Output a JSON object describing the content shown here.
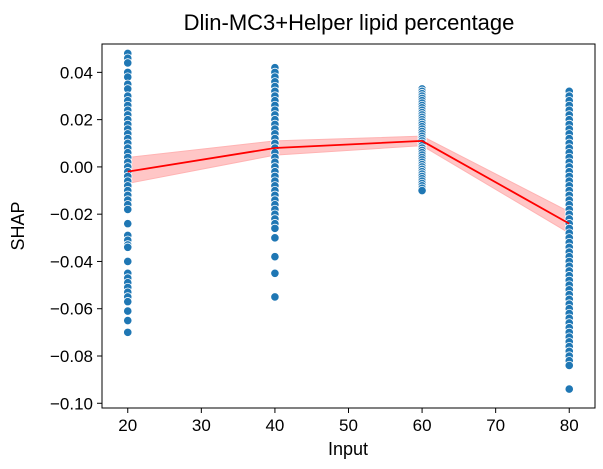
{
  "chart_data": {
    "type": "scatter",
    "title": "Dlin-MC3+Helper lipid percentage",
    "xlabel": "Input",
    "ylabel": "SHAP",
    "xlim": [
      16.5,
      83.5
    ],
    "ylim": [
      -0.102,
      0.052
    ],
    "x_ticks": [
      20,
      30,
      40,
      50,
      60,
      70,
      80
    ],
    "y_ticks": [
      -0.1,
      -0.08,
      -0.06,
      -0.04,
      -0.02,
      0.0,
      0.02,
      0.04
    ],
    "x_tick_labels": [
      "20",
      "30",
      "40",
      "50",
      "60",
      "70",
      "80"
    ],
    "y_tick_labels": [
      "−0.10",
      "−0.08",
      "−0.06",
      "−0.04",
      "−0.02",
      "0.00",
      "0.02",
      "0.04"
    ],
    "grid": false,
    "scatter_series": {
      "color": "#1f77b4",
      "points": [
        {
          "x": 20,
          "y": [
            0.048,
            0.046,
            0.044,
            0.04,
            0.038,
            0.035,
            0.033,
            0.03,
            0.028,
            0.026,
            0.024,
            0.022,
            0.02,
            0.018,
            0.016,
            0.014,
            0.012,
            0.01,
            0.008,
            0.006,
            0.004,
            0.002,
            0.0,
            -0.002,
            -0.004,
            -0.006,
            -0.008,
            -0.01,
            -0.012,
            -0.014,
            -0.016,
            -0.018,
            -0.024,
            -0.029,
            -0.031,
            -0.033,
            -0.034,
            -0.04,
            -0.045,
            -0.047,
            -0.049,
            -0.051,
            -0.053,
            -0.055,
            -0.057,
            -0.061,
            -0.065,
            -0.07
          ]
        },
        {
          "x": 40,
          "y": [
            0.042,
            0.04,
            0.038,
            0.036,
            0.034,
            0.032,
            0.03,
            0.028,
            0.026,
            0.024,
            0.022,
            0.02,
            0.018,
            0.016,
            0.014,
            0.012,
            0.01,
            0.008,
            0.006,
            0.004,
            0.002,
            0.0,
            -0.002,
            -0.004,
            -0.006,
            -0.008,
            -0.01,
            -0.012,
            -0.014,
            -0.016,
            -0.018,
            -0.02,
            -0.022,
            -0.024,
            -0.026,
            -0.03,
            -0.038,
            -0.045,
            -0.055
          ]
        },
        {
          "x": 60,
          "y": [
            0.033,
            0.032,
            0.031,
            0.03,
            0.029,
            0.028,
            0.027,
            0.026,
            0.025,
            0.024,
            0.023,
            0.022,
            0.021,
            0.02,
            0.019,
            0.018,
            0.017,
            0.016,
            0.015,
            0.014,
            0.013,
            0.012,
            0.011,
            0.01,
            0.009,
            0.008,
            0.007,
            0.006,
            0.005,
            0.004,
            0.003,
            0.002,
            0.001,
            0.0,
            -0.001,
            -0.002,
            -0.003,
            -0.004,
            -0.005,
            -0.006,
            -0.007,
            -0.008,
            -0.009,
            -0.01
          ]
        },
        {
          "x": 80,
          "y": [
            0.032,
            0.03,
            0.028,
            0.026,
            0.024,
            0.022,
            0.02,
            0.018,
            0.016,
            0.014,
            0.012,
            0.01,
            0.008,
            0.006,
            0.004,
            0.002,
            0.0,
            -0.002,
            -0.004,
            -0.006,
            -0.008,
            -0.01,
            -0.012,
            -0.014,
            -0.016,
            -0.018,
            -0.02,
            -0.022,
            -0.024,
            -0.026,
            -0.028,
            -0.03,
            -0.032,
            -0.034,
            -0.036,
            -0.038,
            -0.04,
            -0.042,
            -0.044,
            -0.046,
            -0.048,
            -0.05,
            -0.052,
            -0.054,
            -0.056,
            -0.058,
            -0.06,
            -0.062,
            -0.064,
            -0.066,
            -0.068,
            -0.07,
            -0.072,
            -0.074,
            -0.076,
            -0.078,
            -0.08,
            -0.082,
            -0.084,
            -0.094
          ]
        }
      ]
    },
    "line_series": {
      "color": "#ff0000",
      "x": [
        20,
        40,
        60,
        80
      ],
      "y": [
        -0.002,
        0.008,
        0.011,
        -0.024
      ],
      "ci_lower": [
        -0.007,
        0.005,
        0.009,
        -0.028
      ],
      "ci_upper": [
        0.004,
        0.011,
        0.013,
        -0.019
      ],
      "ci_color": "#ffb3b3"
    }
  }
}
